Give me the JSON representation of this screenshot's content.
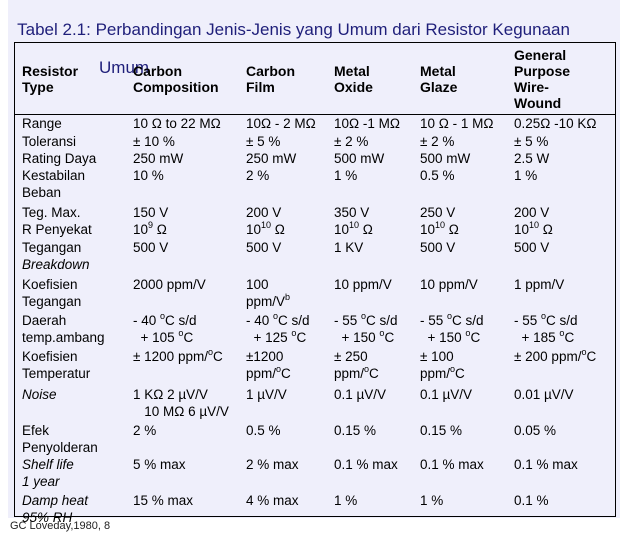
{
  "title": {
    "line1": "Tabel 2.1: Perbandingan Jenis-Jenis yang Umum dari Resistor Kegunaan",
    "line2": "Umum"
  },
  "headers": [
    [
      "Resistor",
      "Type"
    ],
    [
      "Carbon",
      "Composition"
    ],
    [
      "Carbon",
      "Film"
    ],
    [
      "Metal",
      "Oxide"
    ],
    [
      "Metal",
      "Glaze"
    ],
    [
      "General",
      "Purpose",
      "Wire-",
      "Wound"
    ]
  ],
  "rows": [
    {
      "label": [
        "Range"
      ],
      "italic": false,
      "cells": [
        [
          "10 Ω to 22 MΩ"
        ],
        [
          "10Ω - 2 MΩ"
        ],
        [
          "10Ω -1 MΩ"
        ],
        [
          "10 Ω - 1 MΩ"
        ],
        [
          "0.25Ω -10 KΩ"
        ]
      ]
    },
    {
      "label": [
        "Toleransi"
      ],
      "italic": false,
      "cells": [
        [
          "± 10 %"
        ],
        [
          "± 5 %"
        ],
        [
          "± 2 %"
        ],
        [
          "± 2 %"
        ],
        [
          "± 5 %"
        ]
      ]
    },
    {
      "label": [
        "Rating Daya"
      ],
      "italic": false,
      "cells": [
        [
          "250 mW"
        ],
        [
          "250 mW"
        ],
        [
          "500 mW"
        ],
        [
          "500 mW"
        ],
        [
          "2.5 W"
        ]
      ]
    },
    {
      "label": [
        "Kestabilan",
        "Beban"
      ],
      "italic": false,
      "cells": [
        [
          "10 %"
        ],
        [
          "2 %"
        ],
        [
          "1 %"
        ],
        [
          "0.5 %"
        ],
        [
          "1 %"
        ]
      ]
    },
    {
      "label": [
        "Teg. Max."
      ],
      "italic": false,
      "cells": [
        [
          "150 V"
        ],
        [
          "200 V"
        ],
        [
          "350 V"
        ],
        [
          "250 V"
        ],
        [
          "200 V"
        ]
      ]
    },
    {
      "label": [
        "R Penyekat"
      ],
      "italic": false,
      "cells": [
        [
          "10|9| Ω"
        ],
        [
          "10|10| Ω"
        ],
        [
          "10|10| Ω"
        ],
        [
          "10|10| Ω"
        ],
        [
          "10|10| Ω"
        ]
      ]
    },
    {
      "label": [
        "Tegangan",
        "Breakdown"
      ],
      "italic2": true,
      "cells": [
        [
          "500 V"
        ],
        [
          "500 V"
        ],
        [
          "1 KV"
        ],
        [
          "500 V"
        ],
        [
          "500 V"
        ]
      ]
    },
    {
      "label": [
        "Koefisien",
        "Tegangan"
      ],
      "italic": false,
      "cells": [
        [
          "2000 ppm/V"
        ],
        [
          "100",
          "ppm/V|b|"
        ],
        [
          "10 ppm/V"
        ],
        [
          "10 ppm/V"
        ],
        [
          "1 ppm/V"
        ]
      ]
    },
    {
      "label": [
        "Daerah",
        "temp.ambang"
      ],
      "italic": false,
      "cells": [
        [
          "- 40 |o|C s/d",
          "  + 105 |o|C"
        ],
        [
          "- 40 |o|C s/d",
          "  + 125 |o|C"
        ],
        [
          "- 55 |o|C s/d",
          "  + 150 |o|C"
        ],
        [
          "- 55 |o|C s/d",
          "  + 150 |o|C"
        ],
        [
          "- 55 |o|C s/d",
          "  + 185 |o|C"
        ]
      ]
    },
    {
      "label": [
        "Koefisien",
        "Temperatur"
      ],
      "italic": false,
      "cells": [
        [
          "± 1200 ppm/|o|C"
        ],
        [
          "±1200",
          "ppm/|o|C"
        ],
        [
          "± 250",
          "ppm/|o|C"
        ],
        [
          "± 100",
          "ppm/|o|C"
        ],
        [
          "± 200 ppm/|o|C"
        ]
      ]
    },
    {
      "label": [
        "Noise"
      ],
      "italic": true,
      "cells": [
        [
          "1 KΩ 2 µV/V",
          "   10 MΩ 6 µV/V"
        ],
        [
          "1 µV/V"
        ],
        [
          "0.1 µV/V"
        ],
        [
          "0.1 µV/V"
        ],
        [
          "0.01 µV/V"
        ]
      ]
    },
    {
      "label": [
        "Efek",
        "Penyolderan"
      ],
      "italic": false,
      "cells": [
        [
          "2 %"
        ],
        [
          "0.5 %"
        ],
        [
          "0.15 %"
        ],
        [
          "0.15 %"
        ],
        [
          "0.05 %"
        ]
      ]
    },
    {
      "label": [
        "Shelf life",
        "1 year"
      ],
      "italic": true,
      "cells": [
        [
          "5 % max"
        ],
        [
          "2 % max"
        ],
        [
          "0.1 % max"
        ],
        [
          "0.1 % max"
        ],
        [
          "0.1 % max"
        ]
      ]
    },
    {
      "label": [
        "Damp heat",
        "95% RH"
      ],
      "italic": true,
      "cells": [
        [
          "15 % max"
        ],
        [
          "4 % max"
        ],
        [
          "1 %"
        ],
        [
          "1 %"
        ],
        [
          "0.1 %"
        ]
      ]
    }
  ],
  "footer": "GC Loveday,1980, 8"
}
